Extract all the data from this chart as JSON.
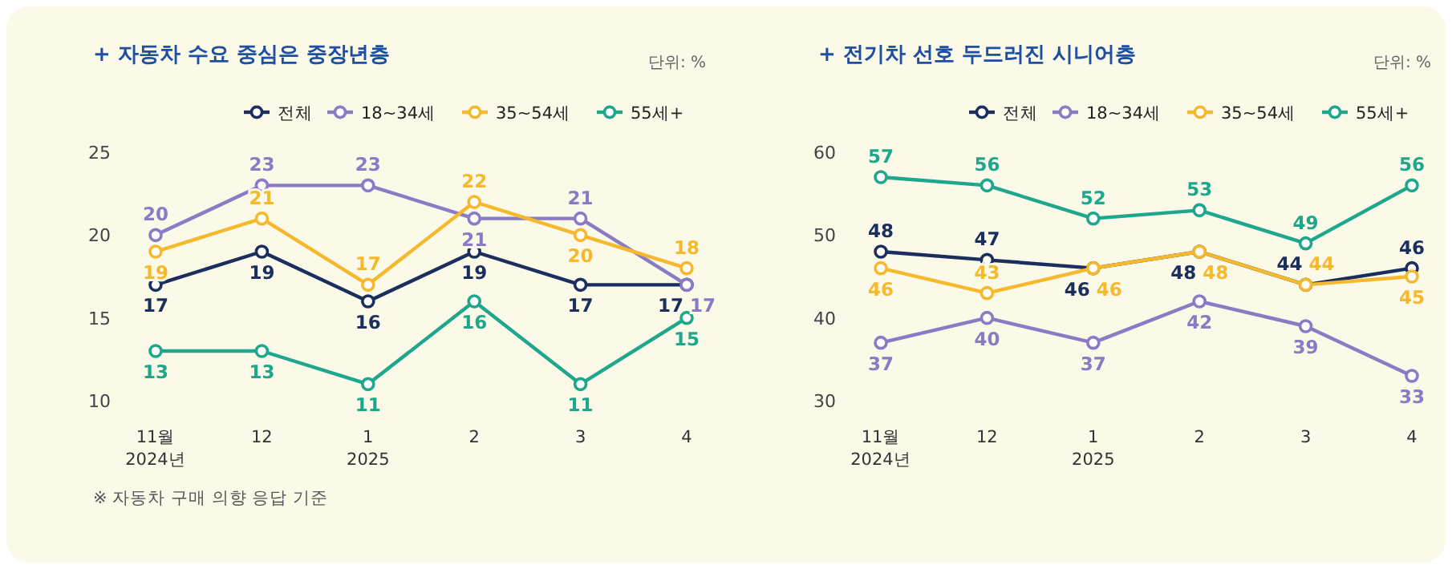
{
  "chart_data": [
    {
      "type": "line",
      "title": "+ 자동차 수요 중심은 중장년층",
      "subtitle": "단위: %",
      "categories": [
        "11월\n2024년",
        "12",
        "1\n2025",
        "2",
        "3",
        "4"
      ],
      "series": [
        {
          "name": "전체",
          "color": "#1b2f5e",
          "values": [
            17,
            19,
            16,
            19,
            17,
            17
          ]
        },
        {
          "name": "18~34세",
          "color": "#8b7bc4",
          "values": [
            20,
            23,
            23,
            21,
            21,
            17
          ]
        },
        {
          "name": "35~54세",
          "color": "#f6b92d",
          "values": [
            19,
            21,
            17,
            22,
            20,
            18
          ]
        },
        {
          "name": "55세+",
          "color": "#1fa78d",
          "values": [
            13,
            13,
            11,
            16,
            11,
            15
          ]
        }
      ],
      "ylim": [
        10,
        25
      ],
      "yticks": [
        10,
        15,
        20,
        25
      ],
      "legend": "top right",
      "marker": "circle",
      "line_style": "solid",
      "data_labels": true,
      "annotations": [
        "※ 자동차 구매 의향 응답 기준"
      ]
    },
    {
      "type": "line",
      "title": "+ 전기차 선호 두드러진 시니어층",
      "subtitle": "단위: %",
      "categories": [
        "11월\n2024년",
        "12",
        "1\n2025",
        "2",
        "3",
        "4"
      ],
      "series": [
        {
          "name": "전체",
          "color": "#1b2f5e",
          "values": [
            48,
            47,
            46,
            48,
            44,
            46
          ]
        },
        {
          "name": "18~34세",
          "color": "#8b7bc4",
          "values": [
            37,
            40,
            37,
            42,
            39,
            33
          ]
        },
        {
          "name": "35~54세",
          "color": "#f6b92d",
          "values": [
            46,
            43,
            46,
            48,
            44,
            45
          ]
        },
        {
          "name": "55세+",
          "color": "#1fa78d",
          "values": [
            57,
            56,
            52,
            53,
            49,
            56
          ]
        }
      ],
      "ylim": [
        30,
        60
      ],
      "yticks": [
        30,
        40,
        50,
        60
      ],
      "legend": "top right",
      "marker": "circle",
      "line_style": "solid",
      "data_labels": true
    }
  ]
}
